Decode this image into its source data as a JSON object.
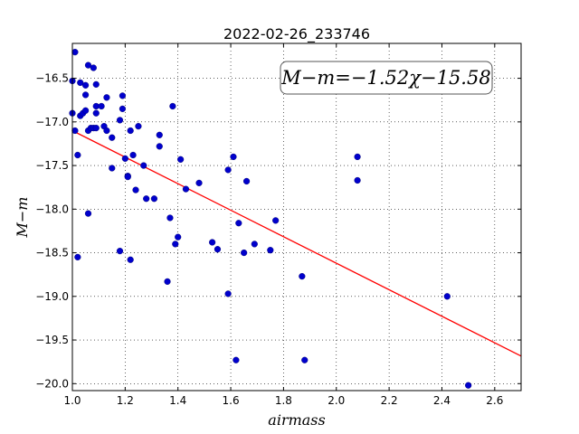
{
  "chart_data": {
    "type": "scatter",
    "title": "2022-02-26_233746",
    "xlabel": "airmass",
    "ylabel": "M−m",
    "xlim": [
      1.0,
      2.7
    ],
    "ylim": [
      -20.08,
      -16.1
    ],
    "x_ticks": [
      1.0,
      1.2,
      1.4,
      1.6,
      1.8,
      2.0,
      2.2,
      2.4,
      2.6
    ],
    "x_tick_labels": [
      "1.0",
      "1.2",
      "1.4",
      "1.6",
      "1.8",
      "2.0",
      "2.2",
      "2.4",
      "2.6"
    ],
    "y_ticks": [
      -16.5,
      -17.0,
      -17.5,
      -18.0,
      -18.5,
      -19.0,
      -19.5,
      -20.0
    ],
    "y_tick_labels": [
      "−16.5",
      "−17.0",
      "−17.5",
      "−18.0",
      "−18.5",
      "−19.0",
      "−19.5",
      "−20.0"
    ],
    "grid": true,
    "point_color": "#0000cc",
    "fit_color": "#ff0000",
    "fit": {
      "slope": -1.52,
      "intercept": -15.58,
      "label": "M−m=−1.52χ−15.58"
    },
    "points": [
      [
        1.0,
        -16.53
      ],
      [
        1.01,
        -16.2
      ],
      [
        1.03,
        -16.55
      ],
      [
        1.05,
        -16.58
      ],
      [
        1.06,
        -16.35
      ],
      [
        1.08,
        -16.38
      ],
      [
        1.09,
        -16.57
      ],
      [
        1.0,
        -16.9
      ],
      [
        1.03,
        -16.93
      ],
      [
        1.04,
        -16.9
      ],
      [
        1.05,
        -16.87
      ],
      [
        1.05,
        -16.69
      ],
      [
        1.06,
        -17.1
      ],
      [
        1.07,
        -17.07
      ],
      [
        1.08,
        -17.07
      ],
      [
        1.09,
        -17.07
      ],
      [
        1.09,
        -16.82
      ],
      [
        1.09,
        -16.9
      ],
      [
        1.11,
        -16.82
      ],
      [
        1.12,
        -17.05
      ],
      [
        1.13,
        -17.1
      ],
      [
        1.13,
        -16.72
      ],
      [
        1.15,
        -17.18
      ],
      [
        1.18,
        -16.98
      ],
      [
        1.19,
        -16.7
      ],
      [
        1.19,
        -16.85
      ],
      [
        1.01,
        -17.1
      ],
      [
        1.02,
        -17.38
      ],
      [
        1.15,
        -17.53
      ],
      [
        1.2,
        -17.42
      ],
      [
        1.21,
        -17.62
      ],
      [
        1.21,
        -17.63
      ],
      [
        1.22,
        -17.1
      ],
      [
        1.23,
        -17.38
      ],
      [
        1.24,
        -17.78
      ],
      [
        1.25,
        -17.05
      ],
      [
        1.27,
        -17.5
      ],
      [
        1.28,
        -17.88
      ],
      [
        1.31,
        -17.88
      ],
      [
        1.33,
        -17.15
      ],
      [
        1.33,
        -17.28
      ],
      [
        1.06,
        -18.05
      ],
      [
        1.02,
        -18.55
      ],
      [
        1.18,
        -18.48
      ],
      [
        1.22,
        -18.58
      ],
      [
        1.36,
        -18.83
      ],
      [
        1.37,
        -18.1
      ],
      [
        1.38,
        -16.82
      ],
      [
        1.39,
        -18.4
      ],
      [
        1.4,
        -18.32
      ],
      [
        1.41,
        -17.43
      ],
      [
        1.43,
        -17.77
      ],
      [
        1.48,
        -17.7
      ],
      [
        1.53,
        -18.38
      ],
      [
        1.55,
        -18.46
      ],
      [
        1.59,
        -17.55
      ],
      [
        1.59,
        -18.97
      ],
      [
        1.61,
        -17.4
      ],
      [
        1.62,
        -19.73
      ],
      [
        1.63,
        -18.16
      ],
      [
        1.65,
        -18.5
      ],
      [
        1.66,
        -17.68
      ],
      [
        1.69,
        -18.4
      ],
      [
        1.75,
        -18.47
      ],
      [
        1.77,
        -18.13
      ],
      [
        1.87,
        -18.77
      ],
      [
        1.88,
        -19.73
      ],
      [
        2.08,
        -17.4
      ],
      [
        2.08,
        -17.67
      ],
      [
        2.42,
        -19.0
      ],
      [
        2.5,
        -20.02
      ]
    ]
  }
}
